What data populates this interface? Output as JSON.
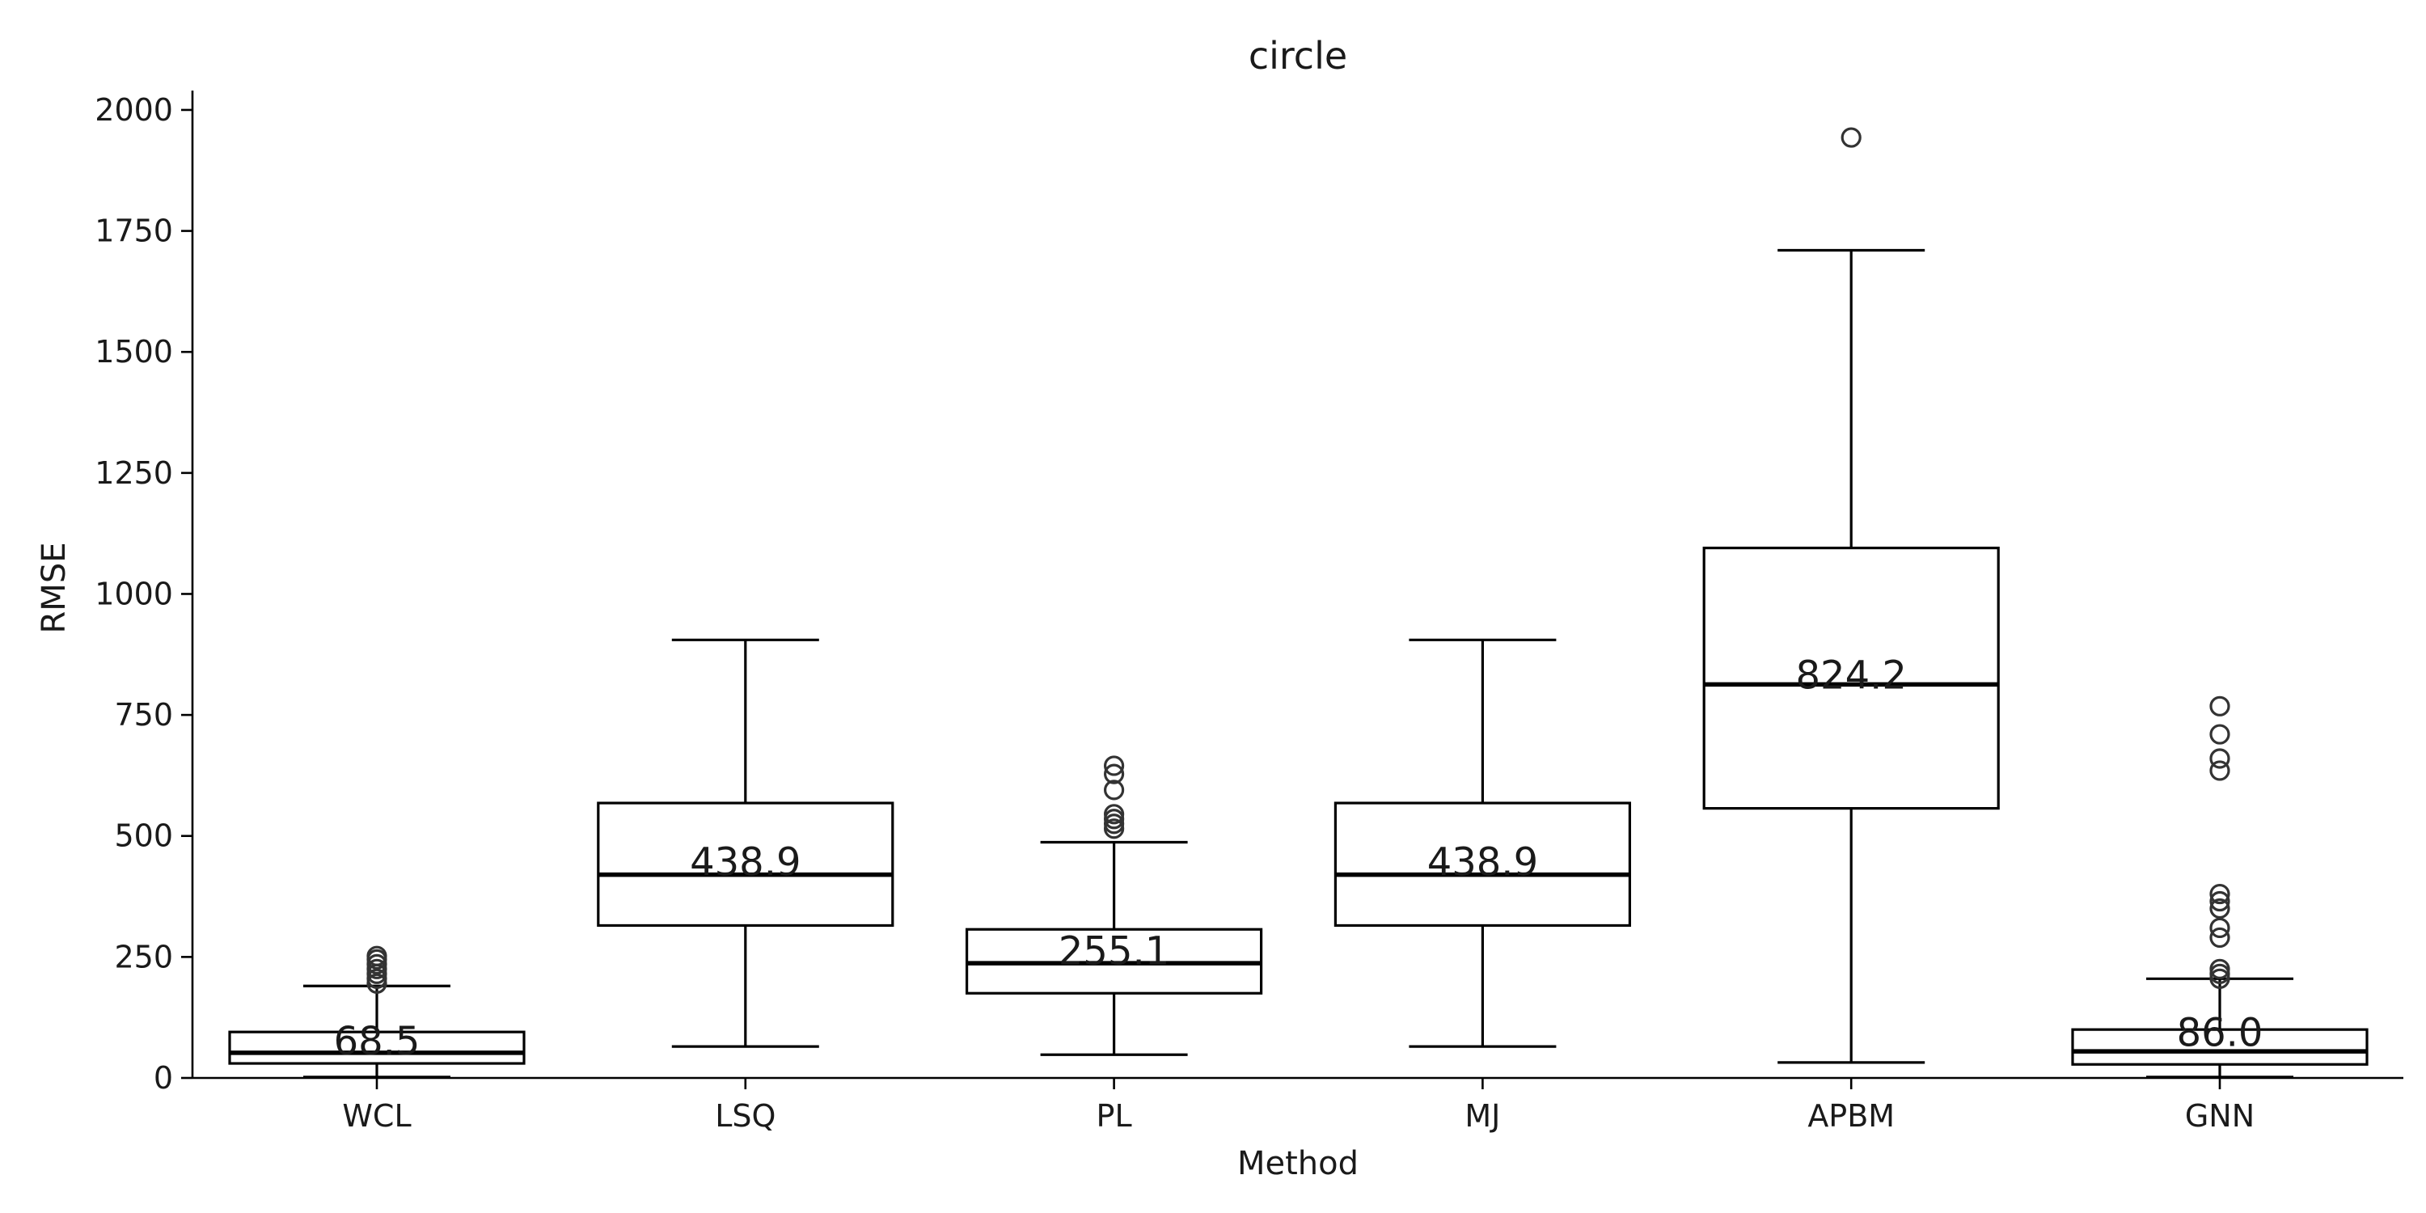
{
  "chart_data": {
    "type": "box",
    "title": "circle",
    "xlabel": "Method",
    "ylabel": "RMSE",
    "ylim": [
      0,
      2040
    ],
    "yticks": [
      0,
      250,
      500,
      750,
      1000,
      1250,
      1500,
      1750,
      2000
    ],
    "grid": false,
    "categories": [
      "WCL",
      "LSQ",
      "PL",
      "MJ",
      "APBM",
      "GNN"
    ],
    "boxes": [
      {
        "label": "WCL",
        "whislo": 2,
        "q1": 30,
        "med": 52,
        "q3": 95,
        "whishi": 190,
        "mean_label": "68.5",
        "fliers": [
          195,
          205,
          215,
          225,
          235,
          245,
          252
        ]
      },
      {
        "label": "LSQ",
        "whislo": 65,
        "q1": 315,
        "med": 420,
        "q3": 568,
        "whishi": 905,
        "mean_label": "438.9",
        "fliers": []
      },
      {
        "label": "PL",
        "whislo": 48,
        "q1": 175,
        "med": 237,
        "q3": 307,
        "whishi": 487,
        "mean_label": "255.1",
        "fliers": [
          515,
          525,
          535,
          545,
          595,
          628,
          645
        ]
      },
      {
        "label": "MJ",
        "whislo": 65,
        "q1": 315,
        "med": 420,
        "q3": 568,
        "whishi": 905,
        "mean_label": "438.9",
        "fliers": []
      },
      {
        "label": "APBM",
        "whislo": 32,
        "q1": 557,
        "med": 813,
        "q3": 1095,
        "whishi": 1710,
        "mean_label": "824.2",
        "fliers": [
          1943
        ]
      },
      {
        "label": "GNN",
        "whislo": 2,
        "q1": 28,
        "med": 55,
        "q3": 100,
        "whishi": 205,
        "mean_label": "86.0",
        "fliers": [
          205,
          215,
          225,
          290,
          310,
          350,
          365,
          380,
          635,
          660,
          710,
          768
        ]
      }
    ]
  }
}
